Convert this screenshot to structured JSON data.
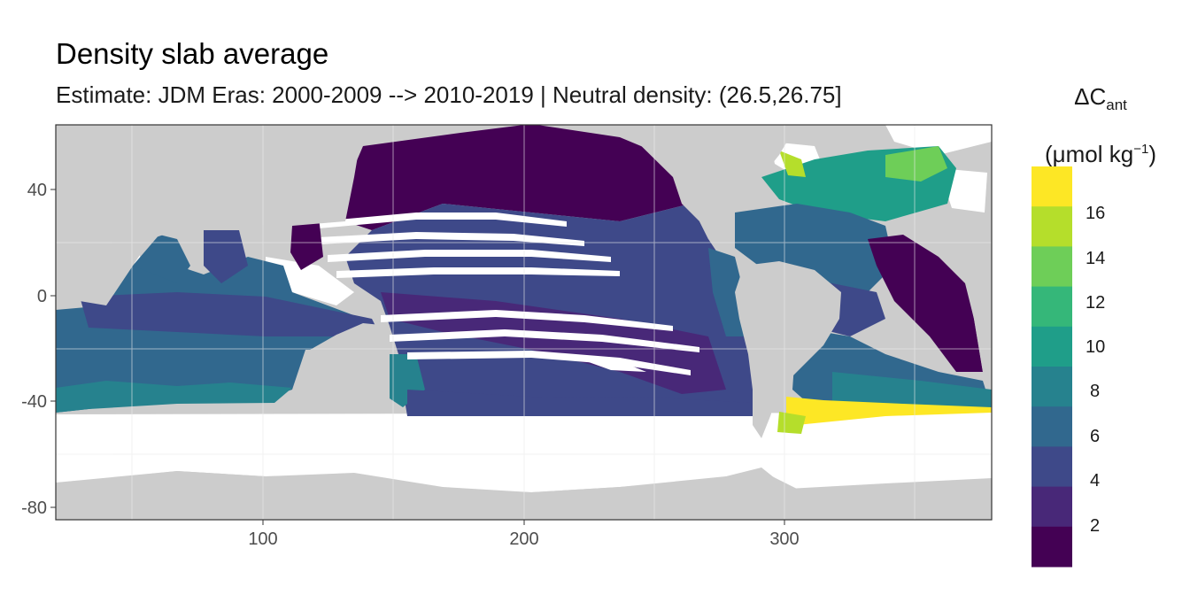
{
  "title": "Density slab average",
  "subtitle": "Estimate: JDM Eras: 2000-2009 --> 2010-2019 | Neutral density: (26.5,26.75]",
  "legend": {
    "title_symbol": "ΔC",
    "title_subscript": "ant",
    "unit_main": "(μmol kg",
    "unit_exp": "−1",
    "unit_close": ")",
    "ticks": [
      "16",
      "14",
      "12",
      "10",
      "8",
      "6",
      "4",
      "2"
    ],
    "colors": [
      "#fde725",
      "#b5de2b",
      "#6ece58",
      "#35b779",
      "#1f9e89",
      "#26828e",
      "#31688e",
      "#3e4989",
      "#482878",
      "#440154"
    ]
  },
  "axes": {
    "x_ticks": [
      "100",
      "200",
      "300"
    ],
    "y_ticks": [
      "40",
      "0",
      "-40",
      "-80"
    ]
  },
  "map_colors": {
    "land": "#cccccc",
    "no_data": "#ffffff",
    "panel_border": "#333333",
    "grid": "#ebebeb"
  }
}
